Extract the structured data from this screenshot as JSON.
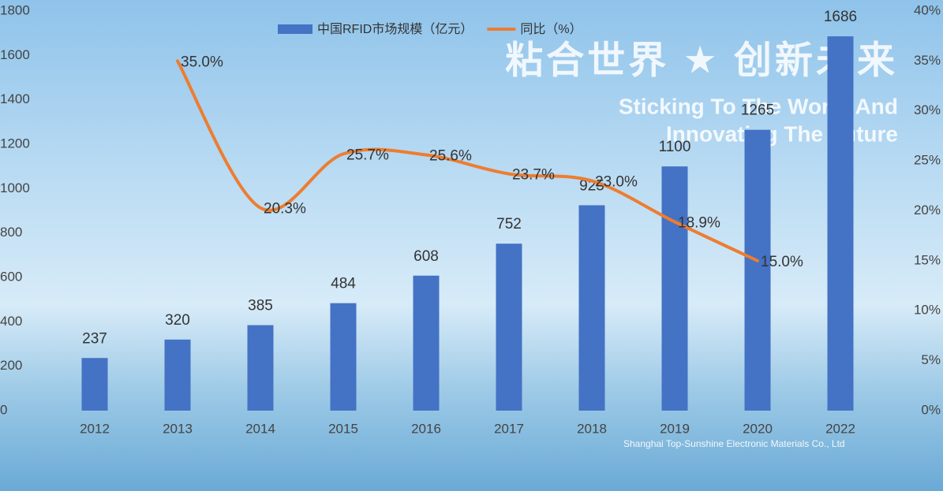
{
  "chart_data": {
    "type": "bar-line",
    "legend_position": "top",
    "categories": [
      "2012",
      "2013",
      "2014",
      "2015",
      "2016",
      "2017",
      "2018",
      "2019",
      "2020",
      "2022"
    ],
    "series": [
      {
        "name": "中国RFID市场规模（亿元）",
        "color": "#4472c4",
        "type": "bar",
        "values": [
          237,
          320,
          385,
          484,
          608,
          752,
          925,
          1100,
          1265,
          1686
        ]
      },
      {
        "name": "同比（%）",
        "color": "#ed7d31",
        "type": "line",
        "axis": "y2",
        "values": [
          null,
          35.0,
          20.3,
          25.7,
          25.6,
          23.7,
          23.0,
          18.9,
          15.0,
          null
        ],
        "value_labels": [
          null,
          "35.0%",
          "20.3%",
          "25.7%",
          "25.6%",
          "23.7%",
          "23.0%",
          "18.9%",
          "15.0%",
          null
        ]
      }
    ],
    "ylim": [
      0,
      1800
    ],
    "yticks": [
      0,
      200,
      400,
      600,
      800,
      1000,
      1200,
      1400,
      1600,
      1800
    ],
    "y2lim": [
      0,
      40
    ],
    "y2ticks": [
      {
        "value": 0,
        "label": "0%"
      },
      {
        "value": 5,
        "label": "5%"
      },
      {
        "value": 10,
        "label": "10%"
      },
      {
        "value": 15,
        "label": "15%"
      },
      {
        "value": 20,
        "label": "20%"
      },
      {
        "value": 25,
        "label": "25%"
      },
      {
        "value": 30,
        "label": "30%"
      },
      {
        "value": 35,
        "label": "35%"
      },
      {
        "value": 40,
        "label": "40%"
      }
    ],
    "annotations": [
      "粘合世界 ★ 创新未来",
      "Sticking To The World And",
      "Innovating The Future",
      "Shanghai Top-Sunshine Electronic Materials Co., Ltd"
    ]
  }
}
